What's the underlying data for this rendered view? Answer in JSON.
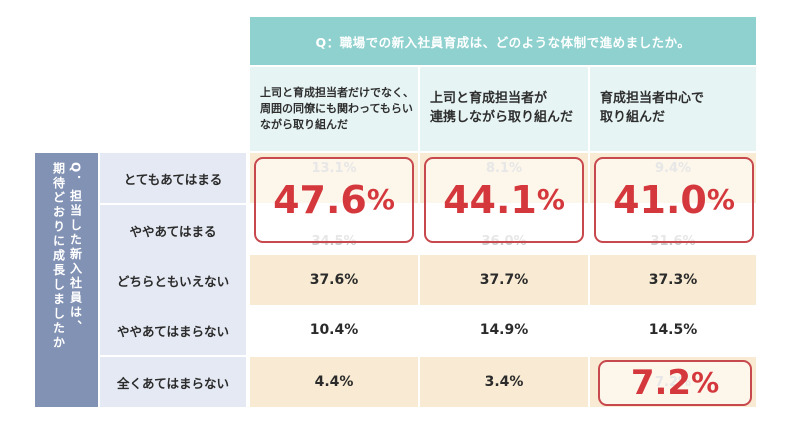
{
  "chart_data": {
    "type": "table",
    "question": "Q：職場での新入社員育成は、どのような体制で進めましたか。",
    "row_axis_title": "Q．担当した新入社員は、\n期待どおりに成長しましたか",
    "columns": [
      {
        "label": "上司と育成担当者だけでなく、\n周囲の同僚にも関わってもらい\nながら取り組んだ"
      },
      {
        "label": "上司と育成担当者が\n連携しながら取り組んだ"
      },
      {
        "label": "育成担当者中心で\n取り組んだ"
      }
    ],
    "rows": [
      {
        "label": "とてもあてはまる",
        "values": [
          "13.1%",
          "8.1%",
          "9.4%"
        ]
      },
      {
        "label": "ややあてはまる",
        "values": [
          "34.5%",
          "36.0%",
          "31.6%"
        ]
      },
      {
        "label": "どちらともいえない",
        "values": [
          "37.6%",
          "37.7%",
          "37.3%"
        ]
      },
      {
        "label": "ややあてはまらない",
        "values": [
          "10.4%",
          "14.9%",
          "14.5%"
        ]
      },
      {
        "label": "全くあてはまらない",
        "values": [
          "4.4%",
          "3.4%",
          "7.2%"
        ]
      }
    ],
    "highlight_combined": [
      {
        "num": "47.6",
        "unit": "%"
      },
      {
        "num": "44.1",
        "unit": "%"
      },
      {
        "num": "41.0",
        "unit": "%"
      }
    ],
    "highlight_single": {
      "num": "7.2",
      "unit": "%"
    }
  },
  "colors": {
    "teal": "#8fd1cf",
    "teal_light": "#e7f4f4",
    "navy": "#8292b5",
    "lavender": "#e4e9f3",
    "row_odd": "#f9ebd3",
    "row_even": "#ffffff",
    "highlight": "#d4373c"
  }
}
